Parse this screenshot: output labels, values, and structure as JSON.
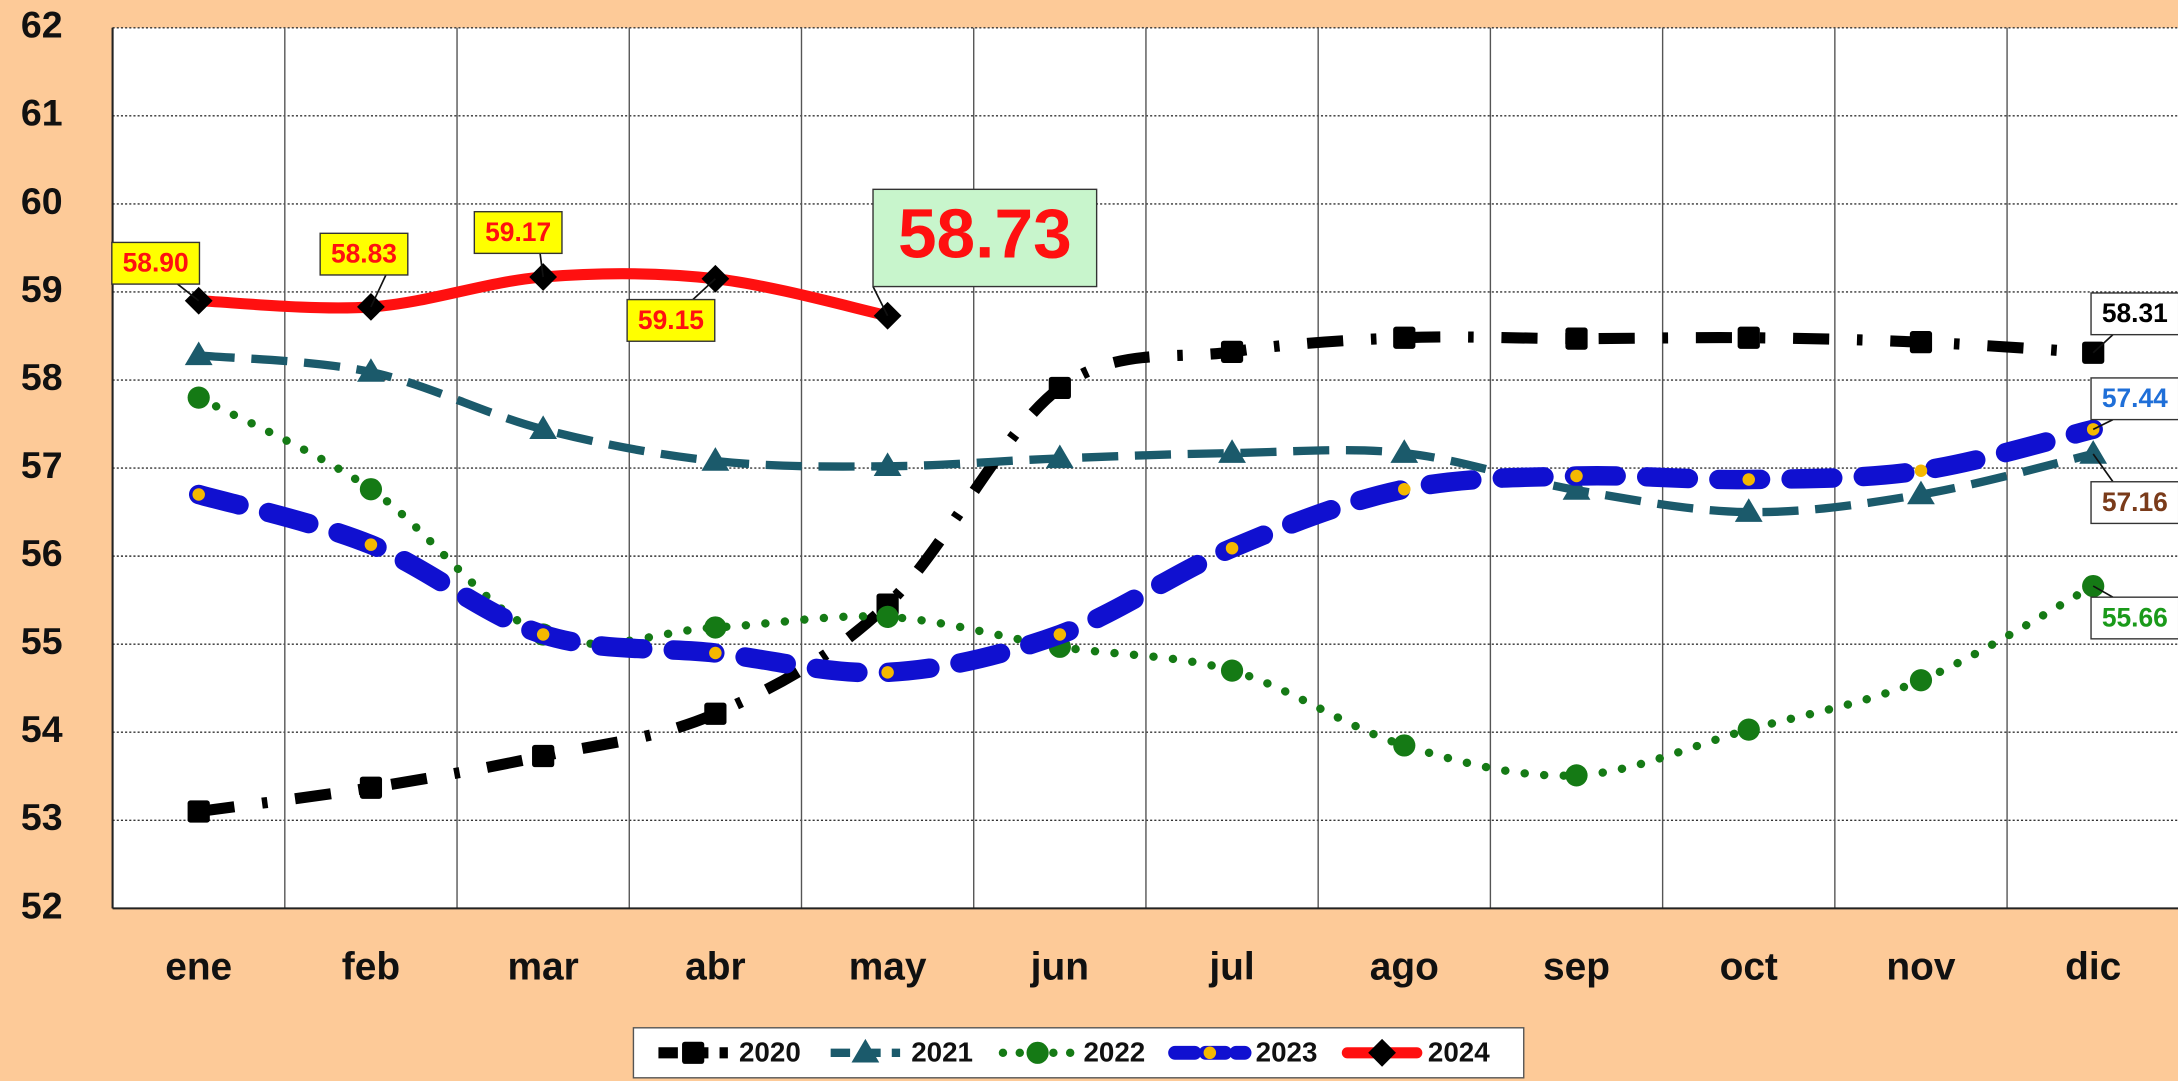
{
  "chart_data": {
    "type": "line",
    "categories": [
      "ene",
      "feb",
      "mar",
      "abr",
      "may",
      "jun",
      "jul",
      "ago",
      "sep",
      "oct",
      "nov",
      "dic"
    ],
    "ylim": [
      52,
      62
    ],
    "yticks": [
      52,
      53,
      54,
      55,
      56,
      57,
      58,
      59,
      60,
      61,
      62
    ],
    "grid": true,
    "legend": "bottom",
    "series": [
      {
        "name": "2020",
        "color": "#000000",
        "values": [
          53.1,
          53.37,
          53.73,
          54.21,
          55.45,
          57.91,
          58.32,
          58.48,
          58.47,
          58.48,
          58.43,
          58.31
        ],
        "value_labels": [
          null,
          null,
          null,
          null,
          null,
          null,
          null,
          null,
          null,
          null,
          null,
          "58.31"
        ]
      },
      {
        "name": "2021",
        "color": "#1b5a6b",
        "values": [
          58.28,
          58.09,
          57.44,
          57.08,
          57.02,
          57.11,
          57.17,
          57.17,
          56.75,
          56.5,
          56.7,
          57.16
        ],
        "value_labels": [
          null,
          null,
          null,
          null,
          null,
          null,
          null,
          null,
          null,
          null,
          null,
          "57.16"
        ]
      },
      {
        "name": "2022",
        "color": "#157a15",
        "values": [
          57.8,
          56.76,
          55.11,
          55.19,
          55.31,
          54.97,
          54.7,
          53.85,
          53.51,
          54.03,
          54.59,
          55.66
        ],
        "value_labels": [
          null,
          null,
          null,
          null,
          null,
          null,
          null,
          null,
          null,
          null,
          null,
          "55.66"
        ]
      },
      {
        "name": "2023",
        "color": "#1010d0",
        "values": [
          56.7,
          56.13,
          55.11,
          54.9,
          54.68,
          55.11,
          56.09,
          56.76,
          56.91,
          56.87,
          56.97,
          57.44
        ],
        "value_labels": [
          null,
          null,
          null,
          null,
          null,
          null,
          null,
          null,
          null,
          null,
          null,
          "57.44"
        ]
      },
      {
        "name": "2024",
        "color": "#ff1010",
        "values": [
          58.9,
          58.83,
          59.17,
          59.15,
          58.73,
          null,
          null,
          null,
          null,
          null,
          null,
          null
        ],
        "value_labels": [
          "58.90",
          "58.83",
          "59.17",
          "59.15",
          "58.73",
          null,
          null,
          null,
          null,
          null,
          null,
          null
        ]
      }
    ]
  }
}
